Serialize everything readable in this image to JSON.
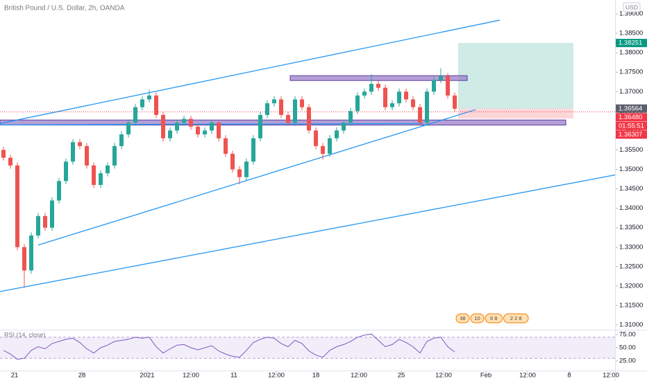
{
  "chart_data": {
    "type": "candlestick",
    "title": "British Pound / U.S. Dollar, 2h, OANDA",
    "currency": "USD",
    "up_color": "#26a69a",
    "down_color": "#ef5350",
    "x": [
      0,
      1,
      2,
      3,
      4,
      5,
      6,
      7,
      8,
      9,
      10,
      11,
      12,
      13,
      14,
      15,
      16,
      17,
      18,
      19,
      20,
      21,
      22,
      23,
      24,
      25,
      26,
      27,
      28,
      29,
      30,
      31,
      32,
      33,
      34,
      35,
      36,
      37,
      38,
      39,
      40,
      41,
      42,
      43,
      44,
      45,
      46,
      47,
      48,
      49,
      50,
      51,
      52,
      53,
      54,
      55,
      56,
      57,
      58,
      59,
      60,
      61,
      62,
      63,
      64,
      65
    ],
    "open": [
      1.355,
      1.353,
      1.351,
      1.33,
      1.324,
      1.333,
      1.338,
      1.335,
      1.342,
      1.347,
      1.352,
      1.357,
      1.356,
      1.351,
      1.346,
      1.349,
      1.351,
      1.356,
      1.359,
      1.362,
      1.366,
      1.368,
      1.369,
      1.364,
      1.358,
      1.36,
      1.362,
      1.363,
      1.361,
      1.359,
      1.36,
      1.362,
      1.358,
      1.354,
      1.35,
      1.348,
      1.352,
      1.358,
      1.364,
      1.367,
      1.368,
      1.364,
      1.362,
      1.368,
      1.366,
      1.36,
      1.356,
      1.354,
      1.358,
      1.36,
      1.362,
      1.365,
      1.369,
      1.37,
      1.372,
      1.371,
      1.366,
      1.367,
      1.37,
      1.368,
      1.366,
      1.362,
      1.37,
      1.373,
      1.374,
      1.369
    ],
    "high": [
      1.3558,
      1.3538,
      1.3518,
      1.3308,
      1.3338,
      1.3388,
      1.3388,
      1.3428,
      1.3478,
      1.3528,
      1.3578,
      1.3578,
      1.3568,
      1.3518,
      1.3498,
      1.3518,
      1.3568,
      1.3598,
      1.3628,
      1.3668,
      1.3688,
      1.3705,
      1.3698,
      1.3648,
      1.3608,
      1.3628,
      1.3638,
      1.3638,
      1.3618,
      1.3608,
      1.3628,
      1.3628,
      1.3588,
      1.3548,
      1.3508,
      1.3528,
      1.3588,
      1.3648,
      1.3678,
      1.3688,
      1.3688,
      1.3648,
      1.3688,
      1.3688,
      1.3668,
      1.3608,
      1.3568,
      1.3588,
      1.3608,
      1.3628,
      1.3658,
      1.3698,
      1.3708,
      1.3745,
      1.3728,
      1.3718,
      1.3678,
      1.3708,
      1.3708,
      1.3688,
      1.3668,
      1.3708,
      1.3738,
      1.376,
      1.3748,
      1.3698
    ],
    "low": [
      1.3522,
      1.3502,
      1.3292,
      1.3195,
      1.3232,
      1.3322,
      1.3342,
      1.3342,
      1.3412,
      1.3462,
      1.3512,
      1.3552,
      1.3502,
      1.3452,
      1.3452,
      1.3482,
      1.3502,
      1.3552,
      1.3582,
      1.3612,
      1.3652,
      1.3672,
      1.3632,
      1.3572,
      1.3572,
      1.3592,
      1.3612,
      1.3602,
      1.3582,
      1.3582,
      1.3592,
      1.3572,
      1.3532,
      1.3492,
      1.3462,
      1.3472,
      1.3512,
      1.3572,
      1.3632,
      1.3662,
      1.3632,
      1.3612,
      1.3612,
      1.3652,
      1.3592,
      1.3552,
      1.3525,
      1.3532,
      1.3572,
      1.3592,
      1.3612,
      1.3642,
      1.3682,
      1.3692,
      1.3702,
      1.3652,
      1.3652,
      1.3662,
      1.3672,
      1.3652,
      1.3612,
      1.3612,
      1.3692,
      1.3722,
      1.3682,
      1.3648
    ],
    "close": [
      1.353,
      1.351,
      1.33,
      1.324,
      1.333,
      1.338,
      1.335,
      1.342,
      1.347,
      1.352,
      1.357,
      1.356,
      1.351,
      1.346,
      1.349,
      1.351,
      1.356,
      1.359,
      1.362,
      1.366,
      1.368,
      1.369,
      1.364,
      1.358,
      1.36,
      1.362,
      1.363,
      1.361,
      1.359,
      1.36,
      1.362,
      1.358,
      1.354,
      1.35,
      1.348,
      1.352,
      1.358,
      1.364,
      1.367,
      1.368,
      1.364,
      1.362,
      1.368,
      1.366,
      1.36,
      1.356,
      1.354,
      1.358,
      1.36,
      1.362,
      1.365,
      1.369,
      1.37,
      1.372,
      1.371,
      1.366,
      1.367,
      1.37,
      1.368,
      1.366,
      1.362,
      1.37,
      1.373,
      1.374,
      1.369,
      1.3656
    ],
    "xlim": [
      -0.5,
      88.1
    ],
    "xticks": [
      {
        "value": 1.6,
        "label": "21"
      },
      {
        "value": 11.3,
        "label": "28"
      },
      {
        "value": 20.7,
        "label": "2021"
      },
      {
        "value": 27,
        "label": "12:00"
      },
      {
        "value": 33.2,
        "label": "11"
      },
      {
        "value": 39.3,
        "label": "12:00"
      },
      {
        "value": 45,
        "label": "18"
      },
      {
        "value": 51.2,
        "label": "12:00"
      },
      {
        "value": 57.3,
        "label": "25"
      },
      {
        "value": 63.4,
        "label": "12:00"
      },
      {
        "value": 69.5,
        "label": "Feb"
      },
      {
        "value": 75.5,
        "label": "12:00"
      },
      {
        "value": 81.5,
        "label": "8"
      },
      {
        "value": 87.5,
        "label": "12:00"
      }
    ],
    "ylim": [
      1.30875,
      1.39357
    ],
    "yticks": [
      {
        "value": 1.39,
        "label": "1.39000"
      },
      {
        "value": 1.385,
        "label": "1.38500"
      },
      {
        "value": 1.38,
        "label": "1.38000"
      },
      {
        "value": 1.375,
        "label": "1.37500"
      },
      {
        "value": 1.37,
        "label": "1.37000"
      },
      {
        "value": 1.365,
        "label": "1.36500"
      },
      {
        "value": 1.36,
        "label": "1.36000"
      },
      {
        "value": 1.355,
        "label": "1.35500"
      },
      {
        "value": 1.35,
        "label": "1.35000"
      },
      {
        "value": 1.345,
        "label": "1.34500"
      },
      {
        "value": 1.34,
        "label": "1.34000"
      },
      {
        "value": 1.335,
        "label": "1.33500"
      },
      {
        "value": 1.33,
        "label": "1.33000"
      },
      {
        "value": 1.325,
        "label": "1.32500"
      },
      {
        "value": 1.32,
        "label": "1.32000"
      },
      {
        "value": 1.315,
        "label": "1.31500"
      },
      {
        "value": 1.31,
        "label": "1.31000"
      }
    ],
    "trendlines": [
      {
        "color": "#2196f3",
        "x": [
          -0.5,
          71.5
        ],
        "y": [
          1.36179,
          1.38839
        ]
      },
      {
        "color": "#2196f3",
        "x": [
          5,
          68
        ],
        "y": [
          1.33054,
          1.36536
        ]
      },
      {
        "color": "#2196f3",
        "x": [
          -0.5,
          88.1
        ],
        "y": [
          1.31857,
          1.34857
        ]
      },
      {
        "color": "#2196f3",
        "x": [
          -0.5,
          60.5
        ],
        "y": [
          1.36143,
          1.36179
        ]
      }
    ],
    "zones": [
      {
        "color": "#9c7fc9",
        "x": [
          -0.5,
          81.0
        ],
        "y": [
          1.3614,
          1.3627
        ]
      },
      {
        "color": "#9c7fc9",
        "x": [
          41.3,
          66.8
        ],
        "y": [
          1.37286,
          1.37411
        ]
      }
    ],
    "position": {
      "x": [
        65.5,
        82.1
      ],
      "entry": 1.36564,
      "target": 1.38251,
      "stop": 1.36307
    },
    "price_labels": [
      {
        "value": 1.38251,
        "label": "1.38251",
        "color": "#089981"
      },
      {
        "value": 1.36564,
        "label": "1.36564",
        "color": "#5d606b"
      },
      {
        "value": 1.3648,
        "label": "1.36480",
        "color": "#f23645"
      },
      {
        "value": 1.36307,
        "label": "1.36307",
        "color": "#f23645"
      }
    ],
    "countdown": "01:55:51",
    "events": [
      "38",
      "10",
      "6 8",
      "2 2 8"
    ],
    "rsi": {
      "title": "RSI (14, close)",
      "color": "#7e57c2",
      "ylim": [
        6.6,
        84.2
      ],
      "yticks": [
        {
          "value": 75,
          "label": "75.00"
        },
        {
          "value": 50,
          "label": "50.00"
        },
        {
          "value": 25,
          "label": "25.00"
        }
      ],
      "bands": [
        30,
        70
      ],
      "values": [
        45,
        38,
        28,
        30,
        45,
        52,
        48,
        58,
        62,
        66,
        68,
        60,
        48,
        40,
        50,
        55,
        62,
        64,
        66,
        70,
        68,
        70,
        52,
        40,
        48,
        55,
        56,
        50,
        46,
        50,
        54,
        44,
        38,
        34,
        32,
        45,
        60,
        66,
        70,
        68,
        58,
        52,
        64,
        58,
        44,
        36,
        32,
        45,
        52,
        56,
        62,
        70,
        74,
        76,
        64,
        52,
        56,
        66,
        60,
        52,
        40,
        62,
        68,
        70,
        52,
        42
      ]
    }
  }
}
